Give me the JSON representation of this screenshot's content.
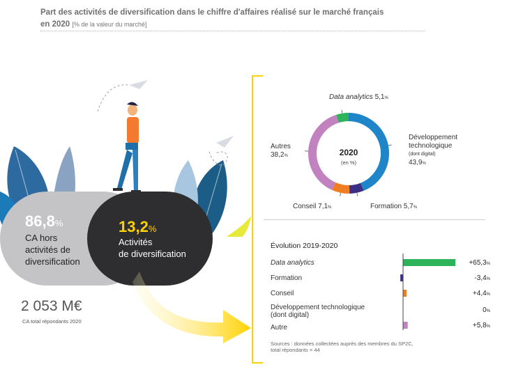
{
  "title": {
    "line1": "Part des activités de diversification dans le chiffre d'affaires réalisé sur le marché français",
    "line2": "en 2020",
    "unit": "[% de la valeur du marché]"
  },
  "left": {
    "share_hors": "86,8",
    "share_hors_unit": "%",
    "label_hors_1": "CA hors",
    "label_hors_2": "activités de",
    "label_hors_3": "diversification",
    "share_diversif": "13,2",
    "share_diversif_unit": "%",
    "label_diversif_1": "Activités",
    "label_diversif_2": "de diversification",
    "total": "2 053 M€",
    "total_label": "CA total répondants 2020",
    "colors": {
      "gray_pill": "#c4c4c6",
      "dark_pill": "#2e2e30",
      "accent": "#ffd200"
    }
  },
  "chart_data": [
    {
      "type": "pie",
      "center_label": "2020",
      "center_sub": "(en %)",
      "slices": [
        {
          "label": "Développement technologique",
          "sub": "(dont digital)",
          "line1": "Développement",
          "line2": "technologique",
          "value": 43.9,
          "value_text": "43,9",
          "color": "#1e86c8"
        },
        {
          "label": "Formation",
          "value": 5.7,
          "value_text": "5,7",
          "color": "#3b2f86"
        },
        {
          "label": "Conseil",
          "value": 7.1,
          "value_text": "7,1",
          "color": "#ef7d22"
        },
        {
          "label": "Autres",
          "value": 38.2,
          "value_text": "38,2",
          "color": "#c281bf"
        },
        {
          "label": "Data analytics",
          "value": 5.1,
          "value_text": "5,1",
          "color": "#2db35a"
        }
      ],
      "unit": "%"
    },
    {
      "type": "bar",
      "title": "Évolution 2019-2020",
      "categories": [
        "Data analytics",
        "Formation",
        "Conseil",
        "Développement technologique (dont digital)",
        "Autre"
      ],
      "category_lines": [
        [
          "Data analytics"
        ],
        [
          "Formation"
        ],
        [
          "Conseil"
        ],
        [
          "Développement technologique",
          "(dont digital)"
        ],
        [
          "Autre"
        ]
      ],
      "values": [
        65.3,
        -3.4,
        4.4,
        0,
        5.8
      ],
      "value_texts": [
        "+65,3",
        "-3,4",
        "+4,4",
        "0",
        "+5,8"
      ],
      "unit": "%",
      "colors": [
        "#2db35a",
        "#3b2f86",
        "#ef7d22",
        "#1e86c8",
        "#c281bf"
      ]
    }
  ],
  "sources": {
    "line1": "Sources : données collectées auprès des membres du SP2C,",
    "line2": "total répondants = 44"
  }
}
